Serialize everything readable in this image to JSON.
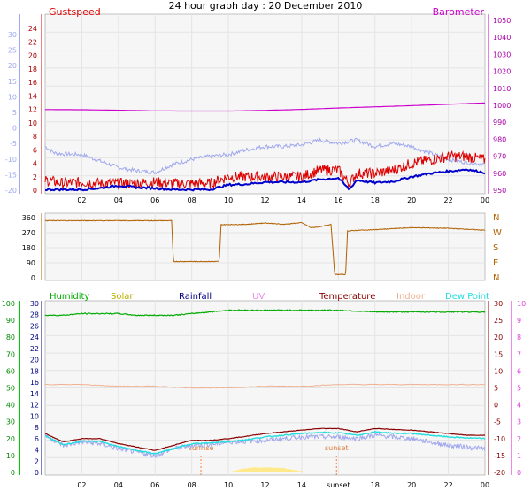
{
  "title": "24 hour graph day : 20 December 2010",
  "colors": {
    "gust": "#dd0000",
    "wind": "#0000cc",
    "baro": "#cc00cc",
    "temp_axis_left": "#a0a8ee",
    "dir": "#b06000",
    "humidity": "#00aa00",
    "solar": "#b8b000",
    "rainfall": "#000080",
    "uv": "#ee88ee",
    "temperature": "#880000",
    "indoor": "#f0b090",
    "dewpoint": "#22dddd",
    "solar_fill": "#ffe98a",
    "grid": "#e4e4e4",
    "plot_bg": "#f6f6f6"
  },
  "time_axis": {
    "labels": [
      "02",
      "04",
      "06",
      "08",
      "10",
      "12",
      "14",
      "16",
      "18",
      "20",
      "22",
      "00"
    ],
    "bottom_labels": [
      "02",
      "04",
      "06",
      "08",
      "10",
      "12",
      "14",
      "sunset",
      "18",
      "20",
      "22",
      "00"
    ],
    "sunrise_label": "sunrise",
    "sunset_label": "sunset",
    "sunrise_hour": 8.5,
    "sunset_hour": 15.9
  },
  "panel1": {
    "left_label": "Gustspeed",
    "right_label": "Barometer",
    "left_outer_ticks": [
      "30",
      "25",
      "20",
      "15",
      "10",
      "5",
      "0",
      "-5",
      "-10",
      "-15",
      "-20"
    ],
    "left_inner_ticks": [
      "24",
      "22",
      "20",
      "18",
      "16",
      "14",
      "12",
      "10",
      "8",
      "6",
      "4",
      "2",
      "0"
    ],
    "right_ticks": [
      "1050",
      "1040",
      "1030",
      "1020",
      "1010",
      "1000",
      "990",
      "980",
      "970",
      "960",
      "950"
    ],
    "ylim_outer": [
      -20,
      30
    ],
    "ylim_inner": [
      0,
      25
    ],
    "ylim_right": [
      948,
      1052
    ]
  },
  "panel2": {
    "left_ticks": [
      "360",
      "270",
      "180",
      "90",
      "0"
    ],
    "right_ticks": [
      "N",
      "W",
      "S",
      "E",
      "N"
    ],
    "ylim": [
      0,
      370
    ]
  },
  "panel3": {
    "legend": [
      "Humidity",
      "Solar",
      "Rainfall",
      "UV",
      "Temperature",
      "Indoor",
      "Dew Point"
    ],
    "left_outer_ticks": [
      "100",
      "90",
      "80",
      "70",
      "60",
      "50",
      "40",
      "30",
      "20",
      "10",
      "0"
    ],
    "left_inner_ticks": [
      "30",
      "28",
      "26",
      "24",
      "22",
      "20",
      "18",
      "16",
      "14",
      "12",
      "10",
      "8",
      "6",
      "4",
      "2",
      "0"
    ],
    "right_inner_ticks": [
      "30",
      "25",
      "20",
      "15",
      "10",
      "5",
      "0",
      "-5",
      "-10",
      "-15",
      "-20"
    ],
    "right_outer_ticks": [
      "10",
      "9",
      "8",
      "7",
      "6",
      "5",
      "4",
      "3",
      "2",
      "1",
      "0"
    ],
    "ylim_humidity": [
      0,
      100
    ],
    "ylim_temp": [
      -20,
      30
    ]
  },
  "chart_data": [
    {
      "type": "line",
      "title": "Gustspeed / Barometer",
      "x_unit": "hour",
      "series": [
        {
          "name": "Gustspeed",
          "axis": "left_inner",
          "color": "#dd0000",
          "x": [
            0,
            1,
            2,
            3,
            4,
            5,
            6,
            7,
            8,
            9,
            10,
            11,
            12,
            13,
            14,
            15,
            16,
            16.6,
            17,
            18,
            19,
            20,
            21,
            22,
            23,
            24
          ],
          "y": [
            1.5,
            1,
            1.2,
            1,
            1,
            1,
            1.2,
            1,
            1,
            1,
            2,
            2,
            2,
            2,
            2,
            3,
            3,
            1,
            2.5,
            2.5,
            3,
            4,
            4.5,
            5,
            5,
            4.5
          ]
        },
        {
          "name": "Wind speed",
          "axis": "left_inner",
          "color": "#0000cc",
          "x": [
            0,
            1,
            2,
            3,
            4,
            5,
            6,
            7,
            8,
            9,
            10,
            11,
            12,
            13,
            14,
            15,
            16,
            16.6,
            17,
            18,
            19,
            20,
            21,
            22,
            23,
            24
          ],
          "y": [
            0.1,
            0.1,
            0.1,
            0.3,
            0.7,
            0.4,
            0.3,
            0.1,
            0.1,
            0.1,
            0.8,
            0.9,
            1.2,
            1.2,
            1.2,
            1.6,
            1.8,
            0.1,
            1.5,
            1.1,
            1.3,
            2,
            2.5,
            2.8,
            3.1,
            2.6
          ]
        },
        {
          "name": "Barometer",
          "axis": "right",
          "color": "#cc00cc",
          "x": [
            0,
            2,
            4,
            6,
            8,
            10,
            12,
            14,
            16,
            18,
            20,
            22,
            24
          ],
          "y": [
            997.5,
            997.4,
            997.1,
            996.7,
            996.6,
            996.6,
            997,
            997.6,
            998.4,
            999.1,
            999.8,
            1000.6,
            1001.4
          ]
        },
        {
          "name": "Outdoor temperature",
          "axis": "left_outer",
          "color": "#a0a8ee",
          "x": [
            0,
            0.5,
            1,
            2,
            3,
            4,
            5,
            6,
            7,
            8,
            9,
            10,
            11,
            12,
            13,
            14,
            15,
            16,
            17,
            18,
            19,
            20,
            21,
            22,
            23,
            24
          ],
          "y": [
            -6.5,
            -8.5,
            -8.8,
            -9,
            -11,
            -13,
            -14,
            -14.5,
            -12,
            -10.5,
            -9.5,
            -9,
            -7.5,
            -6.5,
            -6.5,
            -6,
            -4.5,
            -5.5,
            -4.5,
            -6.5,
            -5.5,
            -6.5,
            -8.5,
            -10.5,
            -11.5,
            -12
          ]
        }
      ]
    },
    {
      "type": "line",
      "title": "Wind direction",
      "x_unit": "hour",
      "series": [
        {
          "name": "Wind direction",
          "color": "#b06000",
          "x": [
            0,
            6.9,
            7,
            9.5,
            9.6,
            11,
            12,
            13,
            14,
            14.5,
            15,
            15.6,
            15.8,
            16.4,
            16.5,
            17,
            18,
            20,
            22,
            24
          ],
          "y": [
            342,
            342,
            98,
            98,
            318,
            320,
            328,
            320,
            330,
            300,
            305,
            320,
            20,
            20,
            280,
            284,
            288,
            300,
            296,
            285
          ]
        }
      ]
    },
    {
      "type": "line",
      "title": "Humidity / Temperature",
      "x_unit": "hour",
      "series": [
        {
          "name": "Humidity",
          "axis": "humidity",
          "color": "#00aa00",
          "x": [
            0,
            1,
            2,
            3,
            4,
            5,
            6,
            7,
            8,
            9,
            10,
            12,
            14,
            16,
            18,
            20,
            22,
            24
          ],
          "y": [
            93,
            93,
            94,
            94,
            94,
            93,
            93,
            93,
            94,
            95,
            96,
            96,
            96,
            96,
            95,
            95,
            95,
            95
          ]
        },
        {
          "name": "Temperature",
          "axis": "temp",
          "color": "#880000",
          "x": [
            0,
            1,
            2,
            3,
            4,
            5,
            6,
            7,
            8,
            9,
            10,
            11,
            12,
            13,
            14,
            15,
            16,
            17,
            18,
            19,
            20,
            21,
            22,
            23,
            24
          ],
          "y": [
            -8.5,
            -11,
            -10,
            -10,
            -11.5,
            -12.5,
            -13.5,
            -12,
            -10.5,
            -10.5,
            -10,
            -9.3,
            -8.5,
            -8,
            -7.5,
            -7,
            -7,
            -8,
            -7,
            -7.3,
            -7.5,
            -8,
            -8.5,
            -9,
            -9
          ]
        },
        {
          "name": "Dew Point",
          "axis": "temp",
          "color": "#22dddd",
          "x": [
            0,
            1,
            2,
            3,
            4,
            5,
            6,
            7,
            8,
            9,
            10,
            11,
            12,
            13,
            14,
            15,
            16,
            17,
            18,
            19,
            20,
            21,
            22,
            23,
            24
          ],
          "y": [
            -9.2,
            -11.8,
            -10.8,
            -10.8,
            -12.4,
            -13.5,
            -14.5,
            -13,
            -11.5,
            -11.3,
            -10.9,
            -10.3,
            -9.5,
            -9,
            -8.5,
            -8.2,
            -8.3,
            -9,
            -8,
            -8.4,
            -8.5,
            -9,
            -9.5,
            -9.8,
            -10
          ]
        },
        {
          "name": "Indoor",
          "axis": "temp",
          "color": "#f0b090",
          "x": [
            0,
            2,
            4,
            6,
            8,
            10,
            12,
            14,
            16,
            18,
            20,
            22,
            24
          ],
          "y": [
            6,
            6,
            5.5,
            5.5,
            5,
            5,
            5.5,
            5.5,
            6,
            6,
            6,
            6,
            6
          ]
        },
        {
          "name": "Outdoor temperature (spiky)",
          "axis": "temp",
          "color": "#a0a8ee",
          "x": [
            0,
            1,
            2,
            3,
            4,
            5,
            6,
            7,
            8,
            9,
            10,
            11,
            12,
            13,
            14,
            15,
            16,
            17,
            18,
            19,
            20,
            21,
            22,
            23,
            24
          ],
          "y": [
            -9,
            -12,
            -11,
            -11.5,
            -13,
            -14,
            -15,
            -13,
            -12,
            -11.8,
            -11,
            -10.8,
            -10.5,
            -10,
            -9.5,
            -9.5,
            -9.5,
            -10,
            -9,
            -9.5,
            -10,
            -11,
            -12,
            -12.5,
            -13
          ]
        },
        {
          "name": "Solar",
          "axis": "humidity",
          "color": "#ffe98a",
          "x": [
            10,
            10.5,
            11,
            11.5,
            12,
            12.5,
            13,
            13.5,
            14,
            14.5
          ],
          "y": [
            0,
            1.5,
            2.5,
            3,
            3,
            2.8,
            2.5,
            1.5,
            0.8,
            0
          ]
        }
      ]
    }
  ]
}
